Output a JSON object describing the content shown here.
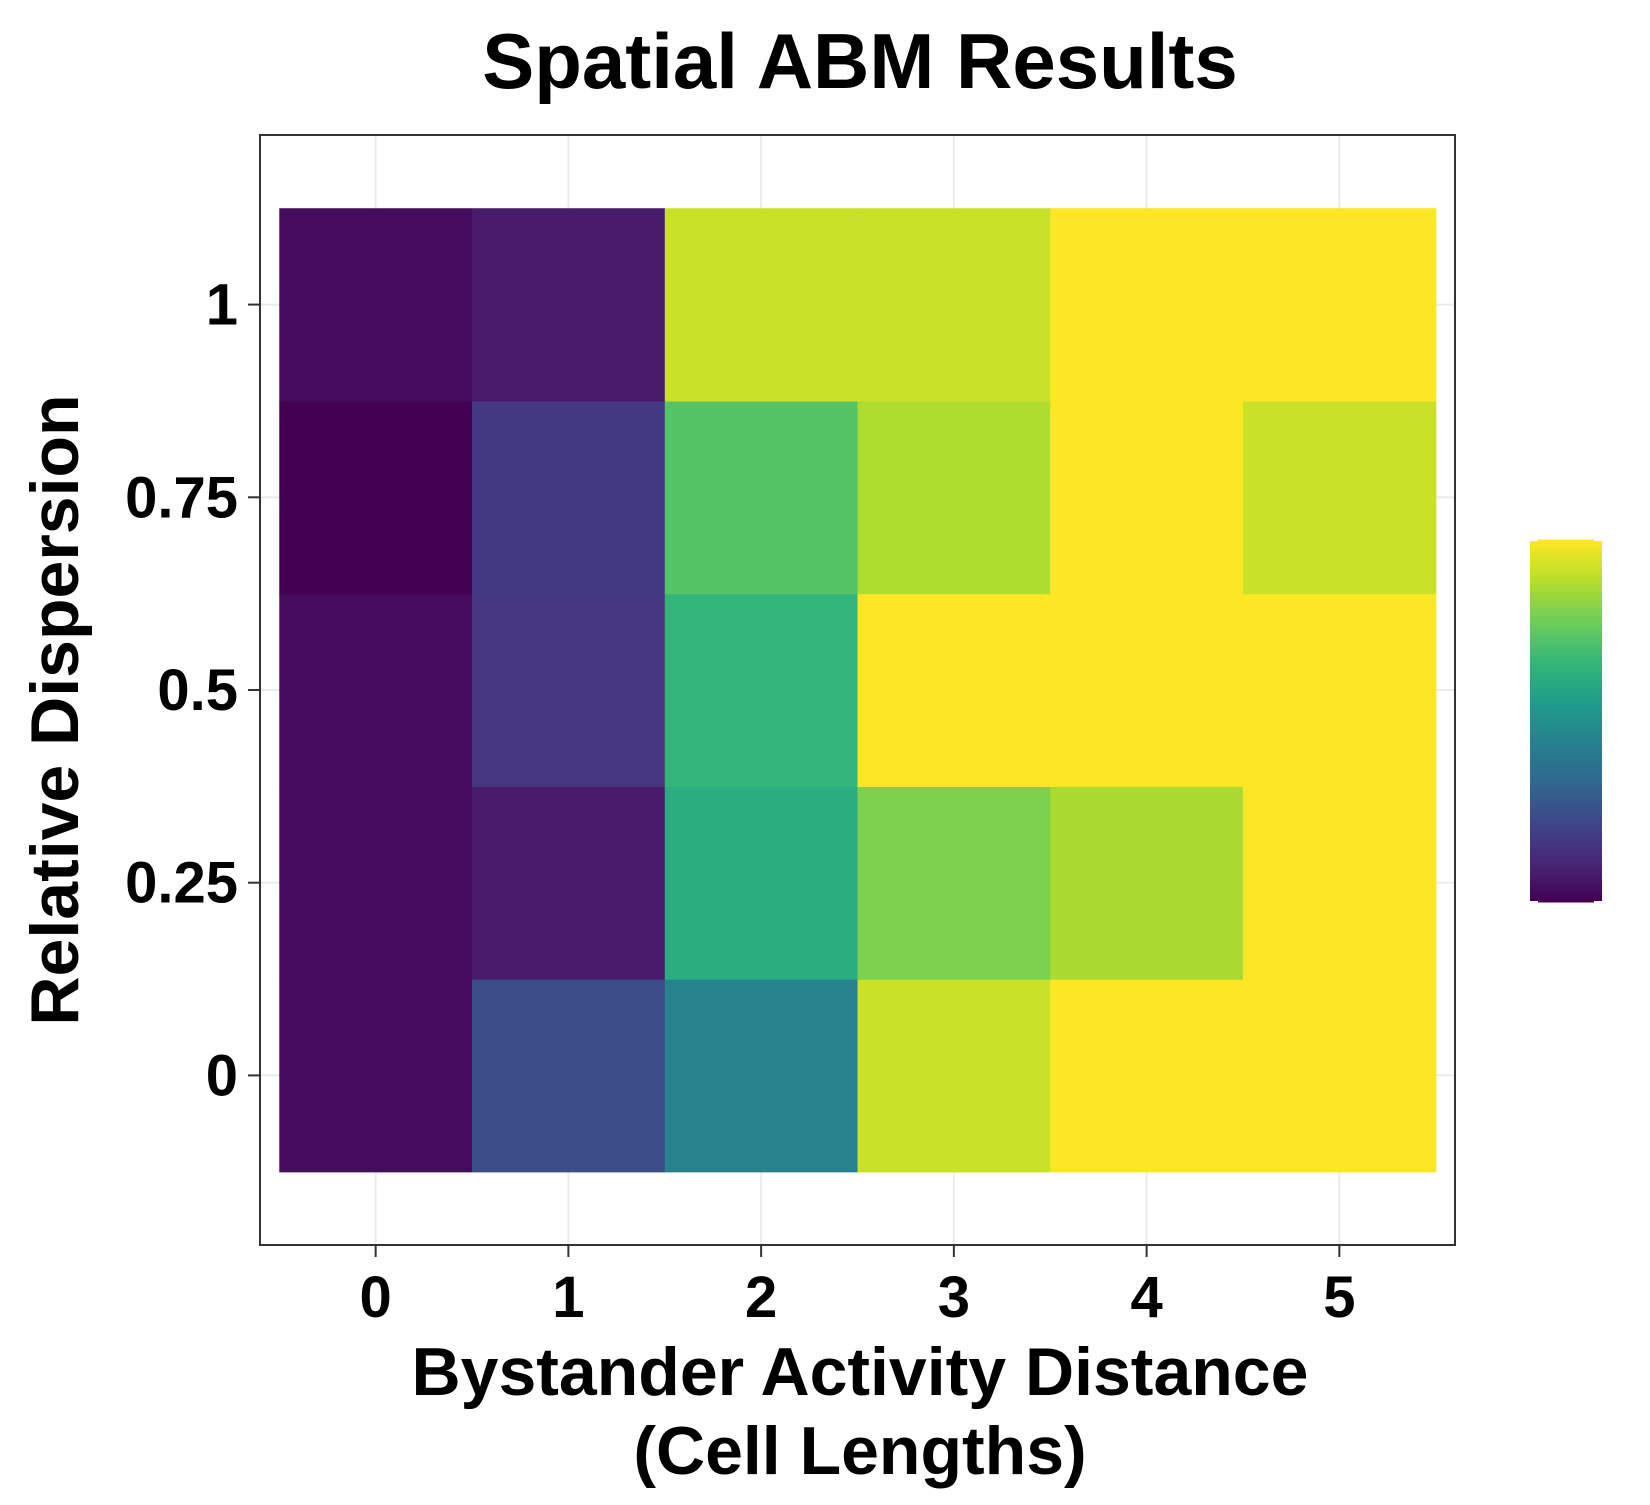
{
  "chart_data": {
    "type": "heatmap",
    "title": "Spatial ABM Results",
    "xlabel": [
      "Bystander Activity Distance",
      "(Cell Lengths)"
    ],
    "ylabel": "Relative Dispersion",
    "x": [
      0,
      1,
      2,
      3,
      4,
      5
    ],
    "y": [
      0,
      0.25,
      0.5,
      0.75,
      1
    ],
    "x_tick_labels": [
      "0",
      "1",
      "2",
      "3",
      "4",
      "5"
    ],
    "y_tick_labels": [
      "0",
      "0.25",
      "0.5",
      "0.75",
      "1"
    ],
    "xlim": [
      -0.6,
      5.6
    ],
    "ylim": [
      -0.22,
      1.22
    ],
    "values_normalized": [
      [
        0.03,
        0.24,
        0.45,
        0.92,
        1.0,
        1.0
      ],
      [
        0.03,
        0.07,
        0.62,
        0.8,
        0.87,
        1.0
      ],
      [
        0.03,
        0.16,
        0.66,
        1.0,
        1.0,
        1.0
      ],
      [
        0.0,
        0.17,
        0.73,
        0.88,
        1.0,
        0.92
      ],
      [
        0.03,
        0.07,
        0.92,
        0.92,
        1.0,
        1.0
      ]
    ],
    "colorscale": "viridis",
    "color_stops": [
      "#440154",
      "#482878",
      "#3e4989",
      "#31688e",
      "#26828e",
      "#1f9e89",
      "#35b779",
      "#6ece58",
      "#b5de2b",
      "#fde725"
    ],
    "legend": {
      "position": "right",
      "labels": []
    },
    "grid": true,
    "panel_border": true
  }
}
